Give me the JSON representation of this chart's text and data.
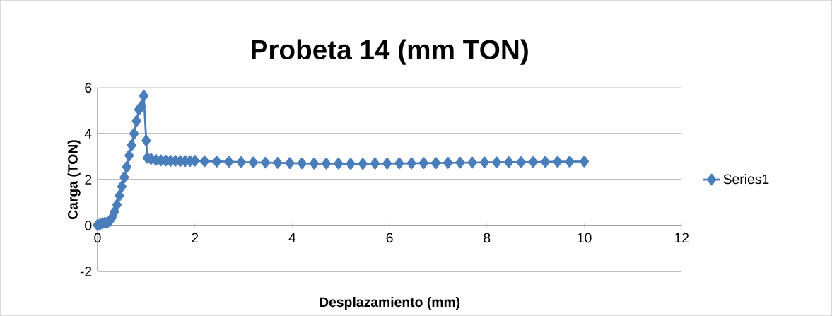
{
  "chart_data": {
    "type": "line",
    "title": "Probeta 14 (mm TON)",
    "xlabel": "Desplazamiento (mm)",
    "ylabel": "Carga (TON)",
    "xlim": [
      0,
      12
    ],
    "ylim": [
      -2,
      6
    ],
    "xticks": [
      0,
      2,
      4,
      6,
      8,
      10,
      12
    ],
    "yticks": [
      -2,
      0,
      2,
      4,
      6
    ],
    "grid": "y",
    "legend": "right",
    "marker": "diamond",
    "line_style": "solid",
    "series": [
      {
        "name": "Series1",
        "color": "#4a7ebb",
        "x": [
          0,
          0.05,
          0.1,
          0.15,
          0.2,
          0.25,
          0.3,
          0.35,
          0.4,
          0.45,
          0.5,
          0.55,
          0.6,
          0.65,
          0.7,
          0.75,
          0.8,
          0.85,
          0.9,
          0.95,
          1.0,
          1.02,
          1.1,
          1.2,
          1.3,
          1.4,
          1.5,
          1.6,
          1.7,
          1.8,
          1.9,
          2.0,
          2.2,
          2.45,
          2.7,
          2.95,
          3.2,
          3.45,
          3.7,
          3.95,
          4.2,
          4.45,
          4.7,
          4.95,
          5.2,
          5.45,
          5.7,
          5.95,
          6.2,
          6.45,
          6.7,
          6.95,
          7.2,
          7.45,
          7.7,
          7.95,
          8.2,
          8.45,
          8.7,
          8.95,
          9.2,
          9.45,
          9.7,
          10.0
        ],
        "values": [
          0.02,
          0.05,
          0.1,
          0.12,
          0.12,
          0.2,
          0.35,
          0.6,
          0.9,
          1.3,
          1.7,
          2.1,
          2.55,
          3.05,
          3.5,
          4.0,
          4.55,
          5.05,
          5.2,
          5.65,
          3.7,
          2.95,
          2.9,
          2.86,
          2.84,
          2.83,
          2.82,
          2.82,
          2.81,
          2.81,
          2.81,
          2.82,
          2.8,
          2.79,
          2.78,
          2.76,
          2.75,
          2.74,
          2.73,
          2.72,
          2.71,
          2.7,
          2.7,
          2.7,
          2.69,
          2.69,
          2.7,
          2.7,
          2.71,
          2.71,
          2.72,
          2.72,
          2.73,
          2.74,
          2.74,
          2.75,
          2.75,
          2.76,
          2.76,
          2.77,
          2.77,
          2.78,
          2.78,
          2.79
        ]
      }
    ]
  }
}
